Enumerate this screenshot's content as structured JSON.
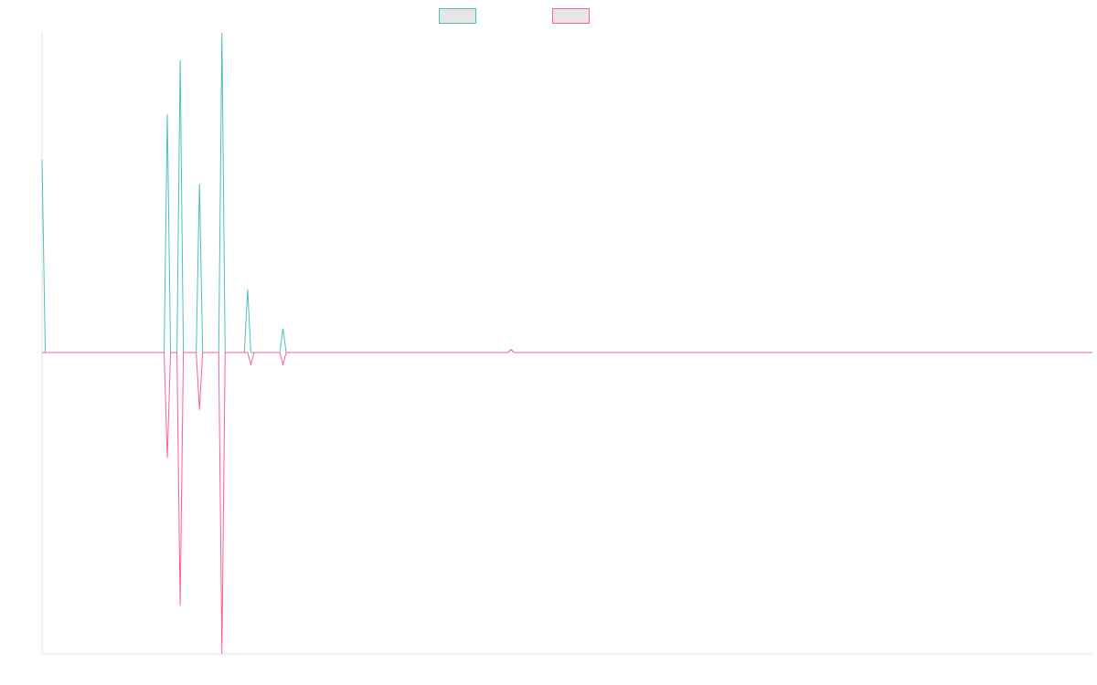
{
  "chart_data": {
    "type": "line",
    "title": "",
    "xlabel": "",
    "ylabel": "",
    "grid": false,
    "legend_position": "top-center",
    "x_count": 328,
    "xlim": [
      0,
      327
    ],
    "ylim": [
      -100,
      100
    ],
    "baseline": 0,
    "series": [
      {
        "name": "",
        "color": "#4bc0c0",
        "fill": "#e6e6e6",
        "points": [
          [
            0,
            64
          ],
          [
            1,
            0
          ],
          [
            2,
            0
          ],
          [
            38,
            0
          ],
          [
            39,
            79
          ],
          [
            40,
            0
          ],
          [
            42,
            0
          ],
          [
            43,
            97
          ],
          [
            44,
            0
          ],
          [
            48,
            0
          ],
          [
            49,
            56
          ],
          [
            50,
            0
          ],
          [
            55,
            0
          ],
          [
            56,
            106
          ],
          [
            57,
            0
          ],
          [
            63,
            0
          ],
          [
            64,
            21
          ],
          [
            65,
            0
          ],
          [
            74,
            0
          ],
          [
            75,
            8
          ],
          [
            76,
            0
          ],
          [
            145,
            0
          ],
          [
            146,
            1
          ],
          [
            147,
            0
          ],
          [
            327,
            0
          ]
        ]
      },
      {
        "name": "",
        "color": "#ff6384",
        "fill": "#e6e6e6",
        "points": [
          [
            0,
            0
          ],
          [
            38,
            0
          ],
          [
            39,
            -35
          ],
          [
            40,
            0
          ],
          [
            42,
            0
          ],
          [
            43,
            -84
          ],
          [
            44,
            0
          ],
          [
            48,
            0
          ],
          [
            49,
            -19
          ],
          [
            50,
            0
          ],
          [
            55,
            0
          ],
          [
            56,
            -100
          ],
          [
            57,
            0
          ],
          [
            64,
            0
          ],
          [
            65,
            -4
          ],
          [
            66,
            0
          ],
          [
            74,
            0
          ],
          [
            75,
            -4
          ],
          [
            76,
            0
          ],
          [
            145,
            0
          ],
          [
            146,
            1
          ],
          [
            147,
            0
          ],
          [
            327,
            0
          ]
        ]
      }
    ]
  }
}
